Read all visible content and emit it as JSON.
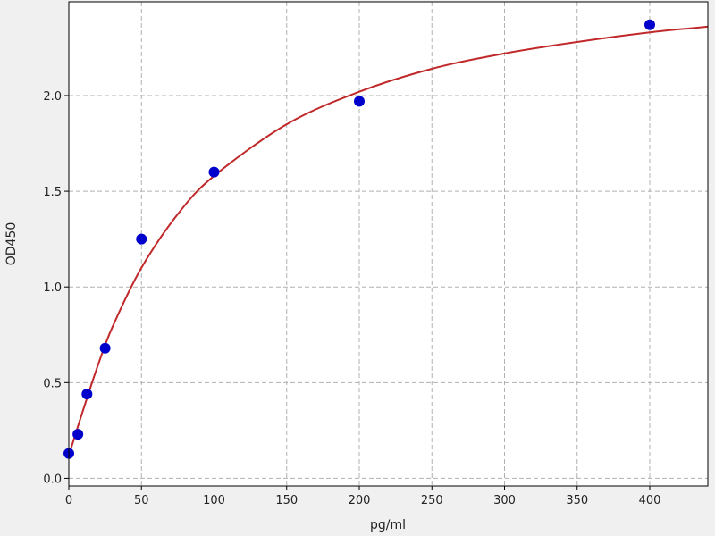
{
  "chart_data": {
    "type": "scatter",
    "title": "",
    "xlabel": "pg/ml",
    "ylabel": "OD450",
    "xlim": [
      0,
      440
    ],
    "ylim": [
      -0.04,
      2.49
    ],
    "xticks": [
      0,
      50,
      100,
      150,
      200,
      250,
      300,
      350,
      400
    ],
    "yticks": [
      0.0,
      0.5,
      1.0,
      1.5,
      2.0
    ],
    "grid": true,
    "points": {
      "color": "#0000cc",
      "x": [
        0,
        6.25,
        12.5,
        25,
        50,
        100,
        200,
        400
      ],
      "y": [
        0.13,
        0.23,
        0.44,
        0.68,
        1.25,
        1.6,
        1.97,
        2.37
      ]
    },
    "fit_curve": {
      "color": "#c0282a",
      "x": [
        0,
        5,
        10,
        20,
        30,
        50,
        75,
        100,
        150,
        200,
        250,
        300,
        350,
        400,
        440
      ],
      "y": [
        0.12,
        0.24,
        0.36,
        0.59,
        0.79,
        1.1,
        1.38,
        1.58,
        1.85,
        2.02,
        2.14,
        2.22,
        2.28,
        2.33,
        2.36
      ]
    }
  }
}
